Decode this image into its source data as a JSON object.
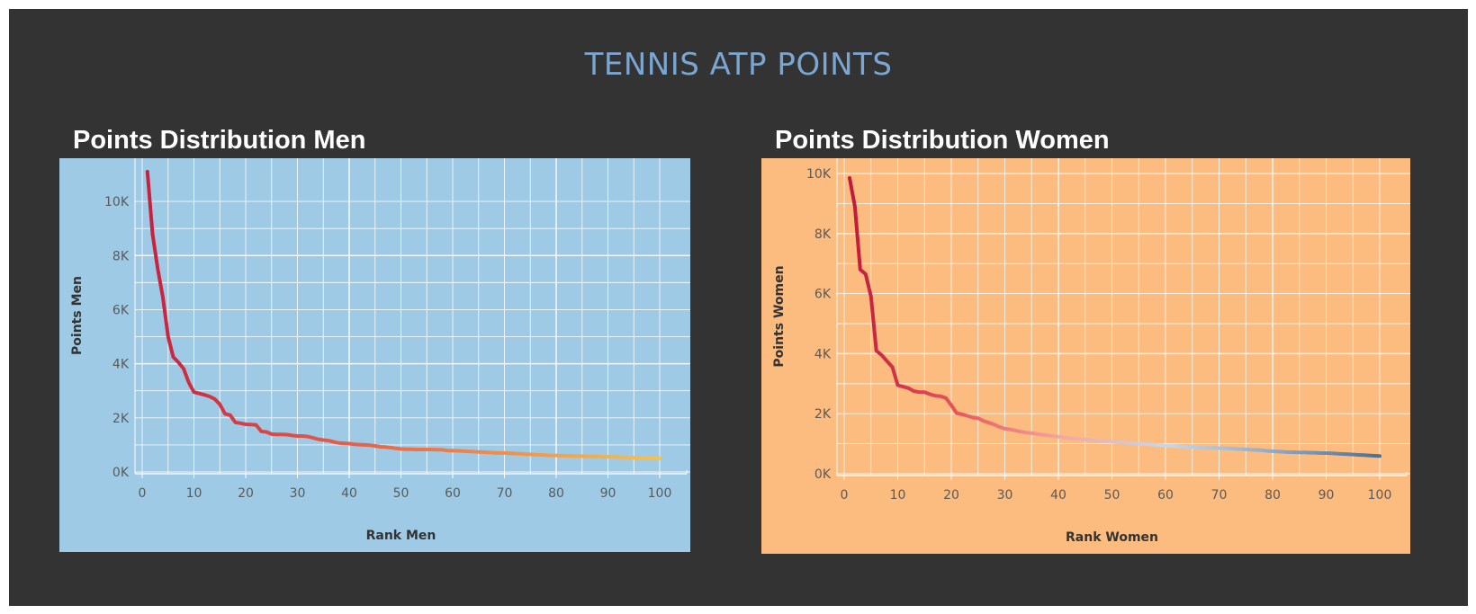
{
  "page": {
    "title": "TENNIS ATP POINTS",
    "title_color": "#7aa6d1",
    "background": "#333333"
  },
  "panels": {
    "men": {
      "title": "Points Distribution Men"
    },
    "women": {
      "title": "Points Distribution Women"
    }
  },
  "chart_data": [
    {
      "type": "line",
      "title": "Points Distribution Men",
      "xlabel": "Rank Men",
      "ylabel": "Points Men",
      "xlim": [
        0,
        100
      ],
      "ylim": [
        0,
        11000
      ],
      "x_ticks": [
        0,
        10,
        20,
        30,
        40,
        50,
        60,
        70,
        80,
        90,
        100
      ],
      "y_ticks": [
        0,
        2000,
        4000,
        6000,
        8000,
        10000
      ],
      "y_tick_labels": [
        "0K",
        "2K",
        "4K",
        "6K",
        "8K",
        "10K"
      ],
      "grid": true,
      "background": "#9ecae6",
      "line_gradient": [
        "#c8203f",
        "#e0574a",
        "#f08a4b",
        "#f5c24c"
      ],
      "series": [
        {
          "x": [
            1,
            2,
            3,
            4,
            5,
            6,
            7,
            8,
            9,
            10,
            11,
            12,
            13,
            14,
            15,
            16,
            17,
            18,
            19,
            20,
            21,
            22,
            23,
            24,
            25,
            26,
            27,
            28,
            29,
            30,
            31,
            32,
            33,
            34,
            35,
            36,
            37,
            38,
            39,
            40,
            41,
            42,
            43,
            44,
            45,
            46,
            47,
            48,
            49,
            50,
            51,
            52,
            53,
            54,
            55,
            56,
            57,
            58,
            59,
            60,
            61,
            62,
            63,
            64,
            65,
            66,
            67,
            68,
            69,
            70,
            71,
            72,
            73,
            74,
            75,
            76,
            77,
            78,
            79,
            80,
            81,
            82,
            83,
            84,
            85,
            86,
            87,
            88,
            89,
            90,
            91,
            92,
            93,
            94,
            95,
            96,
            97,
            98,
            99,
            100
          ],
          "values": [
            11100,
            8800,
            7500,
            6450,
            5000,
            4250,
            4050,
            3820,
            3300,
            2950,
            2900,
            2850,
            2790,
            2700,
            2500,
            2150,
            2100,
            1830,
            1800,
            1760,
            1750,
            1740,
            1500,
            1480,
            1400,
            1390,
            1390,
            1380,
            1350,
            1330,
            1330,
            1310,
            1260,
            1210,
            1180,
            1160,
            1110,
            1070,
            1060,
            1050,
            1020,
            1010,
            1000,
            990,
            960,
            930,
            920,
            900,
            870,
            850,
            840,
            840,
            830,
            830,
            830,
            830,
            820,
            820,
            790,
            790,
            780,
            770,
            760,
            750,
            740,
            730,
            720,
            710,
            700,
            700,
            690,
            680,
            670,
            660,
            650,
            640,
            630,
            620,
            610,
            610,
            600,
            600,
            590,
            590,
            580,
            580,
            570,
            570,
            560,
            560,
            550,
            550,
            540,
            540,
            530,
            530,
            520,
            520,
            510,
            510
          ]
        }
      ]
    },
    {
      "type": "line",
      "title": "Points Distribution Women",
      "xlabel": "Rank Women",
      "ylabel": "Points Women",
      "xlim": [
        0,
        100
      ],
      "ylim": [
        0,
        10000
      ],
      "x_ticks": [
        0,
        10,
        20,
        30,
        40,
        50,
        60,
        70,
        80,
        90,
        100
      ],
      "y_ticks": [
        0,
        2000,
        4000,
        6000,
        8000,
        10000
      ],
      "y_tick_labels": [
        "0K",
        "2K",
        "4K",
        "6K",
        "8K",
        "10K"
      ],
      "grid": true,
      "background": "#fcbb7f",
      "line_gradient": [
        "#c01a3a",
        "#e7555a",
        "#f4a7a0",
        "#c6d8e8",
        "#8fa9c6",
        "#4f6f8f"
      ],
      "series": [
        {
          "x": [
            1,
            2,
            3,
            4,
            5,
            6,
            7,
            8,
            9,
            10,
            11,
            12,
            13,
            14,
            15,
            16,
            17,
            18,
            19,
            20,
            21,
            22,
            23,
            24,
            25,
            26,
            27,
            28,
            29,
            30,
            31,
            32,
            33,
            34,
            35,
            36,
            37,
            38,
            39,
            40,
            41,
            42,
            43,
            44,
            45,
            46,
            47,
            48,
            49,
            50,
            51,
            52,
            53,
            54,
            55,
            56,
            57,
            58,
            59,
            60,
            61,
            62,
            63,
            64,
            65,
            66,
            67,
            68,
            69,
            70,
            71,
            72,
            73,
            74,
            75,
            76,
            77,
            78,
            79,
            80,
            81,
            82,
            83,
            84,
            85,
            86,
            87,
            88,
            89,
            90,
            91,
            92,
            93,
            94,
            95,
            96,
            97,
            98,
            99,
            100
          ],
          "values": [
            9850,
            8900,
            6800,
            6650,
            5900,
            4100,
            3950,
            3750,
            3550,
            2950,
            2900,
            2850,
            2750,
            2720,
            2720,
            2650,
            2600,
            2580,
            2520,
            2280,
            2020,
            1980,
            1930,
            1870,
            1850,
            1760,
            1700,
            1640,
            1560,
            1500,
            1480,
            1440,
            1400,
            1370,
            1350,
            1330,
            1300,
            1280,
            1250,
            1240,
            1210,
            1190,
            1170,
            1150,
            1140,
            1120,
            1100,
            1090,
            1080,
            1060,
            1050,
            1040,
            1030,
            1010,
            1000,
            990,
            980,
            960,
            950,
            940,
            930,
            920,
            910,
            900,
            890,
            870,
            860,
            860,
            860,
            850,
            850,
            840,
            830,
            820,
            810,
            800,
            790,
            780,
            760,
            750,
            740,
            730,
            720,
            720,
            710,
            710,
            700,
            700,
            690,
            690,
            680,
            670,
            660,
            650,
            640,
            630,
            620,
            610,
            600,
            590
          ]
        }
      ]
    }
  ]
}
